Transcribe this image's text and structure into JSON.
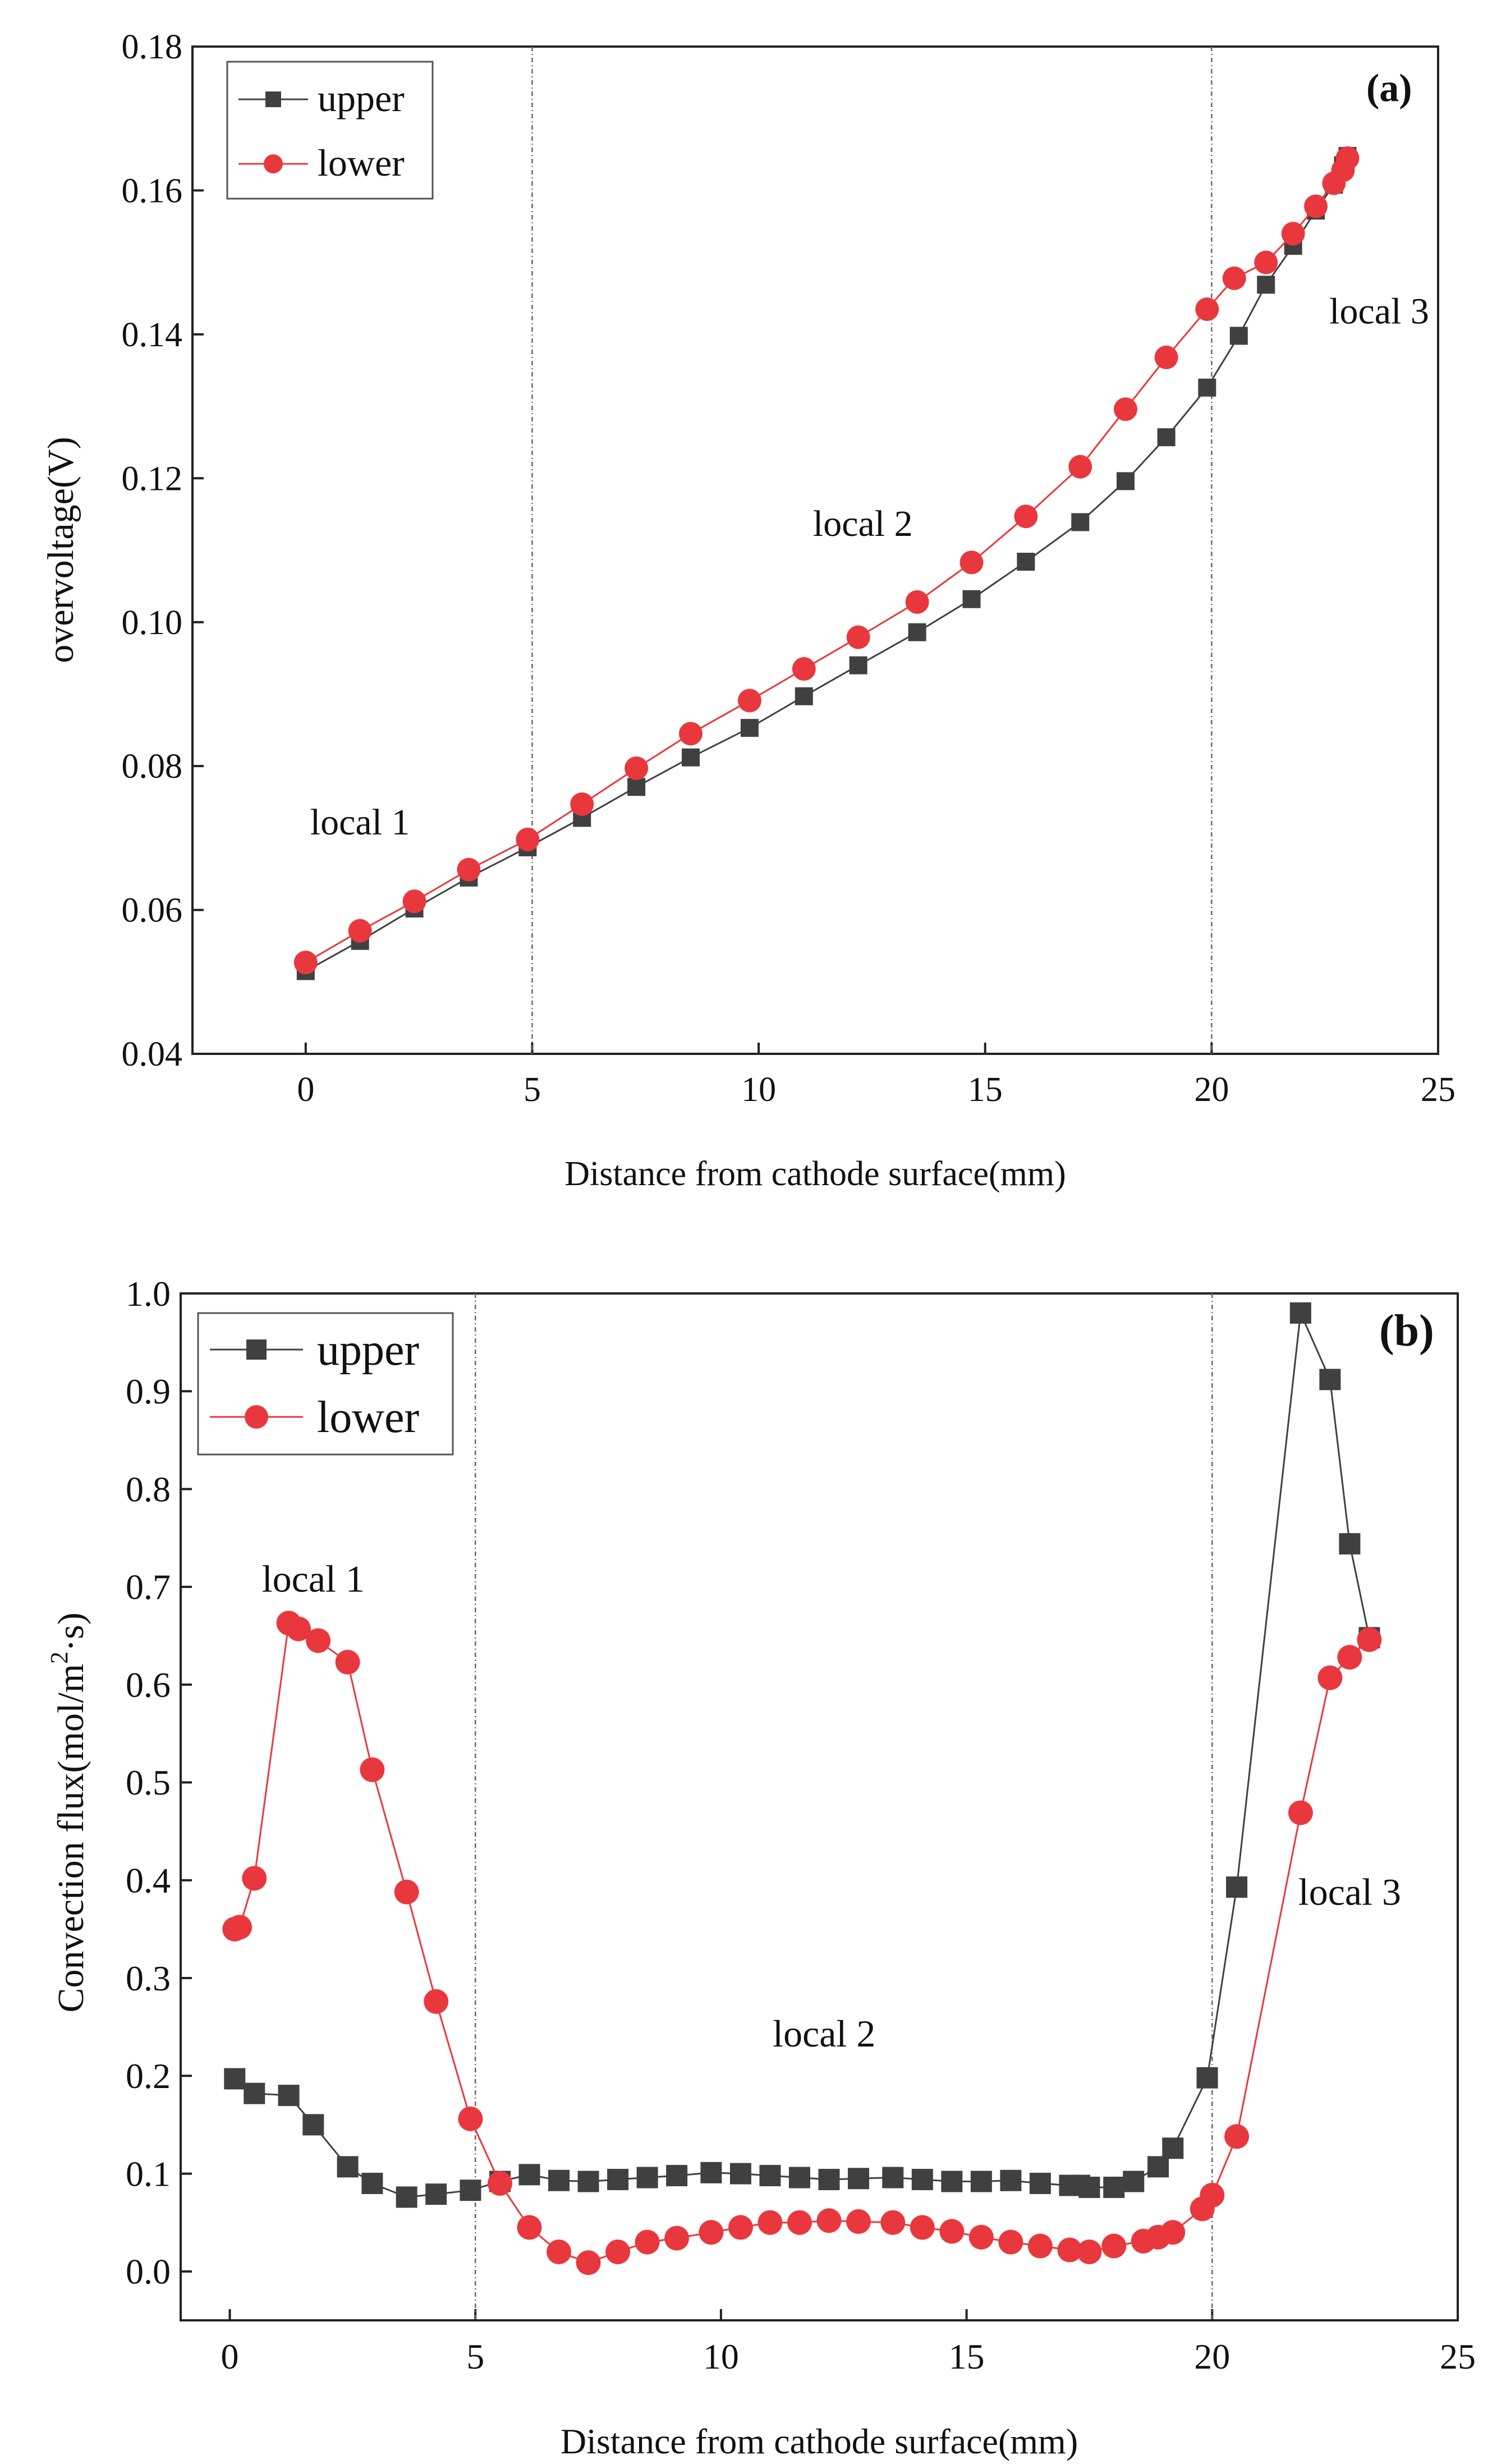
{
  "chart_data": [
    {
      "panel_label": "(a)",
      "type": "line",
      "xlabel": "Distance from cathode surface(mm)",
      "ylabel": "overvoltage(V)",
      "xlim": [
        -2.5,
        25
      ],
      "ylim": [
        0.04,
        0.18
      ],
      "xticks": [
        0,
        5,
        10,
        15,
        20,
        25
      ],
      "yticks": [
        0.04,
        0.06,
        0.08,
        0.1,
        0.12,
        0.14,
        0.16,
        0.18
      ],
      "ytick_labels": [
        "0.04",
        "0.06",
        "0.08",
        "0.10",
        "0.12",
        "0.14",
        "0.16",
        "0.18"
      ],
      "xtick_labels": [
        "0",
        "5",
        "10",
        "15",
        "20",
        "25"
      ],
      "vlines": [
        5,
        20
      ],
      "legend": [
        "upper",
        "lower"
      ],
      "annotations": [
        {
          "text": "local 1",
          "x": 1.2,
          "y": 0.0705
        },
        {
          "text": "local 2",
          "x": 12.3,
          "y": 0.112
        },
        {
          "text": "local 3",
          "x": 23.7,
          "y": 0.1415
        }
      ],
      "series": [
        {
          "name": "upper",
          "color": "#404040",
          "marker": "square",
          "x": [
            0,
            1.2,
            2.4,
            3.6,
            4.9,
            6.1,
            7.3,
            8.5,
            9.8,
            11.0,
            12.2,
            13.5,
            14.7,
            15.9,
            17.1,
            18.1,
            19.0,
            19.9,
            20.6,
            21.2,
            21.8,
            22.3,
            22.7,
            22.9,
            23.0
          ],
          "y": [
            0.0515,
            0.0557,
            0.0602,
            0.0645,
            0.0687,
            0.0728,
            0.0771,
            0.0812,
            0.0853,
            0.0897,
            0.094,
            0.0986,
            0.1032,
            0.1084,
            0.1139,
            0.1196,
            0.1257,
            0.1326,
            0.1398,
            0.1469,
            0.1523,
            0.1572,
            0.1608,
            0.1635,
            0.1648
          ]
        },
        {
          "name": "lower",
          "color": "#e8383d",
          "marker": "circle",
          "x": [
            0,
            1.2,
            2.4,
            3.6,
            4.9,
            6.1,
            7.3,
            8.5,
            9.8,
            11.0,
            12.2,
            13.5,
            14.7,
            15.9,
            17.1,
            18.1,
            19.0,
            19.9,
            20.5,
            21.2,
            21.8,
            22.3,
            22.7,
            22.9,
            23.0
          ],
          "y": [
            0.0527,
            0.0571,
            0.0612,
            0.0656,
            0.0698,
            0.0747,
            0.0797,
            0.0845,
            0.0891,
            0.0935,
            0.0979,
            0.1028,
            0.1083,
            0.1147,
            0.1216,
            0.1296,
            0.1368,
            0.1435,
            0.1478,
            0.15,
            0.154,
            0.1578,
            0.161,
            0.1628,
            0.1645
          ]
        }
      ]
    },
    {
      "panel_label": "(b)",
      "type": "line",
      "xlabel": "Distance from cathode surface(mm)",
      "ylabel": "Convection flux(mol/m",
      "ylabel_sup": "2",
      "ylabel_tail": "·s)",
      "xlim": [
        -1,
        25
      ],
      "ylim": [
        -0.05,
        1.0
      ],
      "xticks": [
        0,
        5,
        10,
        15,
        20,
        25
      ],
      "yticks": [
        0.0,
        0.1,
        0.2,
        0.3,
        0.4,
        0.5,
        0.6,
        0.7,
        0.8,
        0.9,
        1.0
      ],
      "ytick_labels": [
        "0.0",
        "0.1",
        "0.2",
        "0.3",
        "0.4",
        "0.5",
        "0.6",
        "0.7",
        "0.8",
        "0.9",
        "1.0"
      ],
      "xtick_labels": [
        "0",
        "5",
        "10",
        "15",
        "20",
        "25"
      ],
      "vlines": [
        5,
        20
      ],
      "legend": [
        "upper",
        "lower"
      ],
      "annotations": [
        {
          "text": "local 1",
          "x": 1.7,
          "y": 0.695
        },
        {
          "text": "local 2",
          "x": 12.1,
          "y": 0.23
        },
        {
          "text": "local 3",
          "x": 22.8,
          "y": 0.375
        }
      ],
      "series": [
        {
          "name": "upper",
          "color": "#404040",
          "marker": "square",
          "x": [
            0.1,
            0.5,
            1.2,
            1.7,
            2.4,
            2.9,
            3.6,
            4.2,
            4.9,
            5.5,
            6.1,
            6.7,
            7.3,
            7.9,
            8.5,
            9.1,
            9.8,
            10.4,
            11.0,
            11.6,
            12.2,
            12.8,
            13.5,
            14.1,
            14.7,
            15.3,
            15.9,
            16.5,
            17.1,
            17.3,
            17.5,
            18.0,
            18.4,
            18.9,
            19.2,
            19.9,
            20.5,
            21.8,
            22.4,
            22.8,
            23.2
          ],
          "y": [
            0.197,
            0.182,
            0.18,
            0.15,
            0.107,
            0.09,
            0.076,
            0.079,
            0.083,
            0.092,
            0.099,
            0.093,
            0.092,
            0.094,
            0.096,
            0.098,
            0.101,
            0.1,
            0.098,
            0.096,
            0.094,
            0.095,
            0.096,
            0.094,
            0.092,
            0.092,
            0.093,
            0.09,
            0.088,
            0.088,
            0.086,
            0.086,
            0.092,
            0.107,
            0.126,
            0.198,
            0.393,
            0.98,
            0.912,
            0.744,
            0.648
          ]
        },
        {
          "name": "lower",
          "color": "#e8383d",
          "marker": "circle",
          "x": [
            0.1,
            0.2,
            0.5,
            1.2,
            1.4,
            1.8,
            2.4,
            2.9,
            3.6,
            4.2,
            4.9,
            5.5,
            6.1,
            6.7,
            7.3,
            7.9,
            8.5,
            9.1,
            9.8,
            10.4,
            11.0,
            11.6,
            12.2,
            12.8,
            13.5,
            14.1,
            14.7,
            15.3,
            15.9,
            16.5,
            17.1,
            17.5,
            18.0,
            18.6,
            18.9,
            19.2,
            19.8,
            20.0,
            20.5,
            21.8,
            22.4,
            22.8,
            23.2
          ],
          "y": [
            0.35,
            0.352,
            0.402,
            0.663,
            0.657,
            0.645,
            0.623,
            0.513,
            0.388,
            0.276,
            0.156,
            0.09,
            0.045,
            0.02,
            0.009,
            0.02,
            0.03,
            0.034,
            0.04,
            0.045,
            0.05,
            0.05,
            0.052,
            0.051,
            0.05,
            0.045,
            0.041,
            0.035,
            0.03,
            0.026,
            0.022,
            0.02,
            0.026,
            0.031,
            0.035,
            0.04,
            0.064,
            0.078,
            0.138,
            0.469,
            0.607,
            0.628,
            0.646
          ]
        }
      ]
    }
  ]
}
